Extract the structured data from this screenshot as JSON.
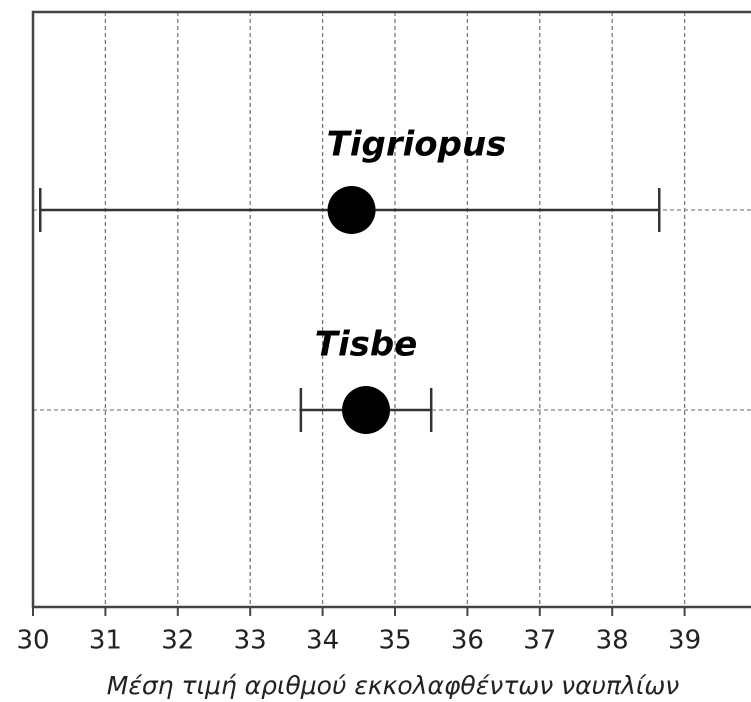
{
  "chart_data": {
    "type": "dot_errorbar",
    "categories": [
      "Tigriopus",
      "Tisbe"
    ],
    "values": [
      34.4,
      34.6
    ],
    "low": [
      30.1,
      33.7
    ],
    "high": [
      38.65,
      35.5
    ],
    "x_label": "Μέση τιμή αριθμού εκκολαφθέντων ναυπλίων",
    "xlim": [
      30,
      40
    ],
    "xticks": [
      30,
      31,
      32,
      33,
      34,
      35,
      36,
      37,
      38,
      39
    ],
    "grid": true,
    "color": "#000000"
  }
}
